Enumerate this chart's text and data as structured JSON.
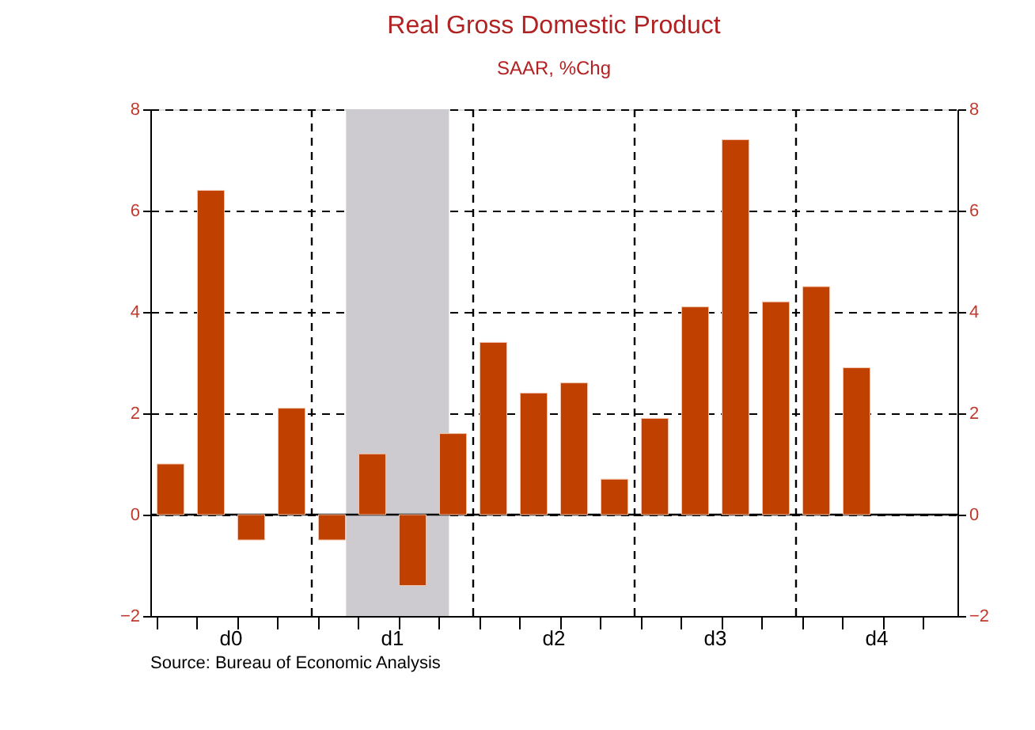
{
  "chart_data": {
    "type": "bar",
    "title": "Real Gross Domestic Product",
    "subtitle": "SAAR, %Chg",
    "categories": [
      null,
      "d0",
      null,
      null,
      null,
      "d1",
      null,
      null,
      null,
      "d2",
      null,
      null,
      null,
      "d3",
      null,
      null,
      null,
      "d4",
      null,
      null
    ],
    "values": [
      1.0,
      6.4,
      -0.5,
      2.1,
      -0.5,
      1.2,
      -1.4,
      1.6,
      3.4,
      2.4,
      2.6,
      0.7,
      1.9,
      4.1,
      7.4,
      4.2,
      4.5,
      2.9,
      null,
      null
    ],
    "color": "#c04000",
    "ylim": [
      -2,
      8
    ],
    "yticks": [
      -2,
      0,
      2,
      4,
      6,
      8
    ],
    "y2lim": [
      -2,
      8
    ],
    "y2ticks": [
      -2,
      0,
      2,
      4,
      6,
      8
    ],
    "grid": true,
    "ref_lines": [
      {
        "axis": "y",
        "value": 0,
        "line_style": "solid",
        "color": "#000000"
      }
    ],
    "annotations": [
      "Source:  Bureau of Economic Analysis"
    ]
  }
}
